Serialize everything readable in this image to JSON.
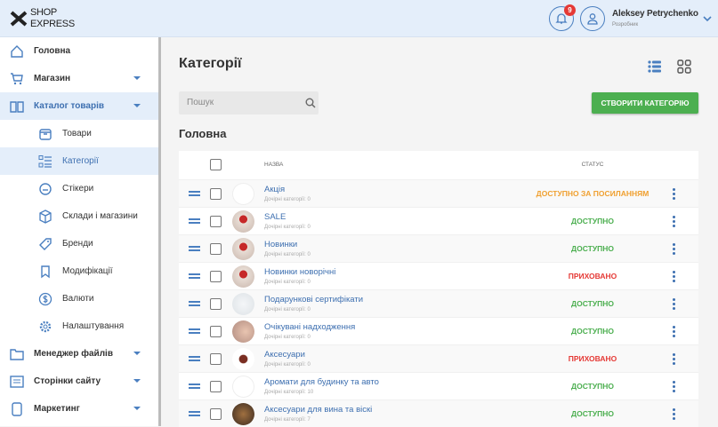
{
  "header": {
    "logo_line1": "SHOP",
    "logo_line2": "EXPRESS",
    "notifications_count": "9",
    "user_name": "Aleksey Petrychenko",
    "user_role": "Розробник"
  },
  "sidebar": {
    "items": [
      {
        "label": "Головна",
        "icon": "home-icon",
        "sub": false,
        "active": false,
        "caret": false
      },
      {
        "label": "Магазин",
        "icon": "cart-icon",
        "sub": false,
        "active": false,
        "caret": true
      },
      {
        "label": "Каталог товарів",
        "icon": "book-icon",
        "sub": false,
        "active": true,
        "caret": true
      },
      {
        "label": "Товари",
        "icon": "box-icon",
        "sub": true,
        "active": false,
        "caret": false
      },
      {
        "label": "Категорії",
        "icon": "category-list-icon",
        "sub": true,
        "active": true,
        "caret": false
      },
      {
        "label": "Стікери",
        "icon": "sticker-icon",
        "sub": true,
        "active": false,
        "caret": false
      },
      {
        "label": "Склади і магазини",
        "icon": "warehouse-icon",
        "sub": true,
        "active": false,
        "caret": false
      },
      {
        "label": "Бренди",
        "icon": "tag-icon",
        "sub": true,
        "active": false,
        "caret": false
      },
      {
        "label": "Модифікації",
        "icon": "bookmark-icon",
        "sub": true,
        "active": false,
        "caret": false
      },
      {
        "label": "Валюти",
        "icon": "currency-icon",
        "sub": true,
        "active": false,
        "caret": false
      },
      {
        "label": "Налаштування",
        "icon": "gear-icon",
        "sub": true,
        "active": false,
        "caret": false
      },
      {
        "label": "Менеджер файлів",
        "icon": "folder-icon",
        "sub": false,
        "active": false,
        "caret": true
      },
      {
        "label": "Сторінки сайту",
        "icon": "pages-icon",
        "sub": false,
        "active": false,
        "caret": true
      },
      {
        "label": "Маркетинг",
        "icon": "marketing-icon",
        "sub": false,
        "active": false,
        "caret": true
      }
    ]
  },
  "main": {
    "title": "Категорії",
    "search_placeholder": "Пошук",
    "create_label": "СТВОРИТИ КАТЕГОРІЮ",
    "section": "Головна",
    "columns": {
      "name": "НАЗВА",
      "status": "СТАТУС"
    },
    "colors": {
      "available": "#4caf50",
      "hidden": "#e53935",
      "link": "#f0a030"
    },
    "rows": [
      {
        "name": "Акція",
        "sub": "Дочірні категорії: 0",
        "status": "ДОСТУПНО ЗА ПОСИЛАННЯМ",
        "kind": "link",
        "img": "none"
      },
      {
        "name": "SALE",
        "sub": "Дочірні категорії: 0",
        "status": "ДОСТУПНО",
        "kind": "available",
        "img": "sale"
      },
      {
        "name": "Новинки",
        "sub": "Дочірні категорії: 0",
        "status": "ДОСТУПНО",
        "kind": "available",
        "img": "sale"
      },
      {
        "name": "Новинки новорічні",
        "sub": "Дочірні категорії: 0",
        "status": "ПРИХОВАНО",
        "kind": "hidden",
        "img": "sale"
      },
      {
        "name": "Подарункові сертифікати",
        "sub": "Дочірні категорії: 0",
        "status": "ДОСТУПНО",
        "kind": "available",
        "img": "light"
      },
      {
        "name": "Очікувані надходження",
        "sub": "Дочірні категорії: 0",
        "status": "ДОСТУПНО",
        "kind": "available",
        "img": "photo"
      },
      {
        "name": "Аксесуари",
        "sub": "Дочірні категорії: 0",
        "status": "ПРИХОВАНО",
        "kind": "hidden",
        "img": "bow"
      },
      {
        "name": "Аромати для будинку та авто",
        "sub": "Дочірні категорії: 10",
        "status": "ДОСТУПНО",
        "kind": "available",
        "img": "none"
      },
      {
        "name": "Аксесуари для вина та віскі",
        "sub": "Дочірні категорії: 7",
        "status": "ДОСТУПНО",
        "kind": "available",
        "img": "dark"
      }
    ]
  }
}
